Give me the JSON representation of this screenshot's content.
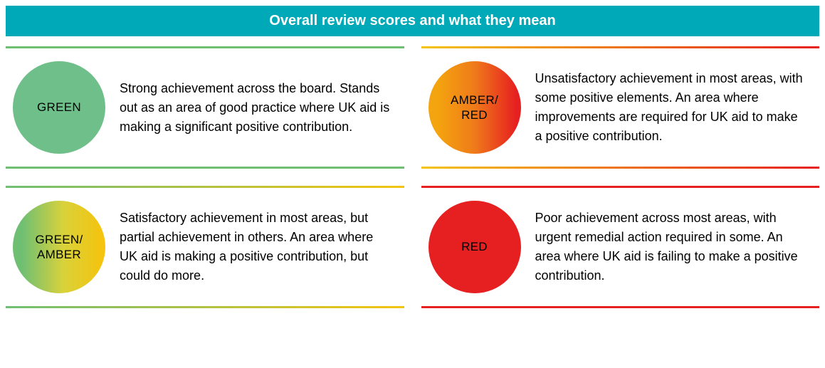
{
  "header": {
    "title": "Overall review scores and what they mean",
    "bg_color": "#00a9b7",
    "text_color": "#ffffff"
  },
  "scores": [
    {
      "label": "GREEN",
      "description": "Strong achievement across the board. Stands out as an area of good practice where UK aid is making a significant positive contribution.",
      "border_class": "border-green",
      "circle_class": "fill-green"
    },
    {
      "label": "AMBER/\nRED",
      "description": "Unsatisfactory achievement in most areas, with some positive elements. An area where improvements are required for UK aid to make a positive contribution.",
      "border_class": "border-amber-red",
      "circle_class": "fill-amber-red"
    },
    {
      "label": "GREEN/\nAMBER",
      "description": "Satisfactory achievement in most areas, but partial achievement in others. An area where UK aid is making a positive contribution, but could do more.",
      "border_class": "border-green-amber",
      "circle_class": "fill-green-amber"
    },
    {
      "label": "RED",
      "description": "Poor achievement across most areas, with urgent remedial action required in some. An area where UK aid is failing to make a positive contribution.",
      "border_class": "border-red",
      "circle_class": "fill-red"
    }
  ],
  "colors": {
    "green": "#6fbf73",
    "amber": "#f4c40f",
    "red": "#e62020",
    "teal": "#00a9b7"
  }
}
